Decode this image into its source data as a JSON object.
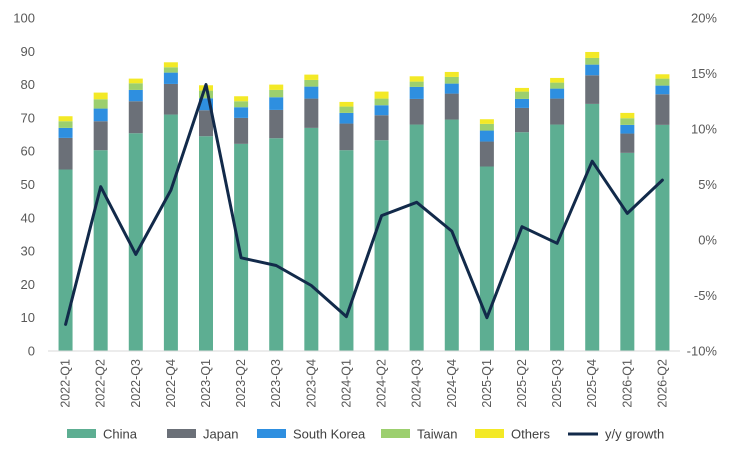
{
  "chart_data": {
    "type": "bar",
    "stacked": true,
    "categories": [
      "2022-Q1",
      "2022-Q2",
      "2022-Q3",
      "2022-Q4",
      "2023-Q1",
      "2023-Q2",
      "2023-Q3",
      "2023-Q4",
      "2024-Q1",
      "2024-Q2",
      "2024-Q3",
      "2024-Q4",
      "2025-Q1",
      "2025-Q2",
      "2025-Q3",
      "2025-Q4",
      "2026-Q1",
      "2026-Q2"
    ],
    "series": [
      {
        "name": "China",
        "color": "#5DAE92",
        "values": [
          54.5,
          60.3,
          65.4,
          71.0,
          64.5,
          62.2,
          63.9,
          67.0,
          60.3,
          63.3,
          68.0,
          69.5,
          55.4,
          65.7,
          68.0,
          74.2,
          59.5,
          67.9
        ]
      },
      {
        "name": "Japan",
        "color": "#6B7078",
        "values": [
          9.5,
          8.7,
          9.6,
          9.2,
          7.8,
          7.8,
          8.5,
          8.8,
          8.0,
          7.5,
          7.7,
          7.8,
          7.5,
          7.3,
          7.8,
          8.6,
          5.8,
          9.2
        ]
      },
      {
        "name": "South Korea",
        "color": "#2E8FE0",
        "values": [
          3.0,
          3.8,
          3.4,
          3.4,
          3.6,
          3.2,
          3.8,
          3.6,
          3.2,
          3.0,
          3.6,
          3.0,
          3.3,
          2.7,
          3.0,
          3.2,
          2.6,
          2.6
        ]
      },
      {
        "name": "Taiwan",
        "color": "#9CCF6E",
        "values": [
          2.0,
          2.8,
          2.0,
          1.6,
          2.3,
          1.8,
          2.2,
          2.0,
          1.9,
          2.0,
          1.6,
          2.0,
          2.0,
          2.2,
          1.8,
          2.0,
          2.0,
          2.1
        ]
      },
      {
        "name": "Others",
        "color": "#F3E926",
        "values": [
          1.5,
          2.0,
          1.4,
          1.5,
          1.6,
          1.5,
          1.6,
          1.6,
          1.4,
          2.1,
          1.6,
          1.5,
          1.4,
          1.1,
          1.4,
          1.8,
          1.6,
          1.3
        ]
      }
    ],
    "line_series": {
      "name": "y/y growth",
      "color": "#122A4A",
      "axis": "right",
      "values": [
        -7.6,
        4.8,
        -1.3,
        4.5,
        14.0,
        -1.6,
        -2.3,
        -4.1,
        -6.9,
        2.2,
        3.4,
        0.8,
        -7.0,
        1.2,
        -0.3,
        7.1,
        2.4,
        5.4
      ]
    },
    "y_left": {
      "min": 0,
      "max": 100,
      "step": 10,
      "ticks": [
        "0",
        "10",
        "20",
        "30",
        "40",
        "50",
        "60",
        "70",
        "80",
        "90",
        "100"
      ]
    },
    "y_right": {
      "min": -10,
      "max": 20,
      "step": 5,
      "ticks": [
        "-10%",
        "-5%",
        "0%",
        "5%",
        "10%",
        "15%",
        "20%"
      ]
    },
    "legend": {
      "position": "bottom",
      "labels": [
        "China",
        "Japan",
        "South Korea",
        "Taiwan",
        "Others",
        "y/y growth"
      ]
    },
    "grid": false,
    "title": "",
    "xlabel": "",
    "ylabel": ""
  }
}
